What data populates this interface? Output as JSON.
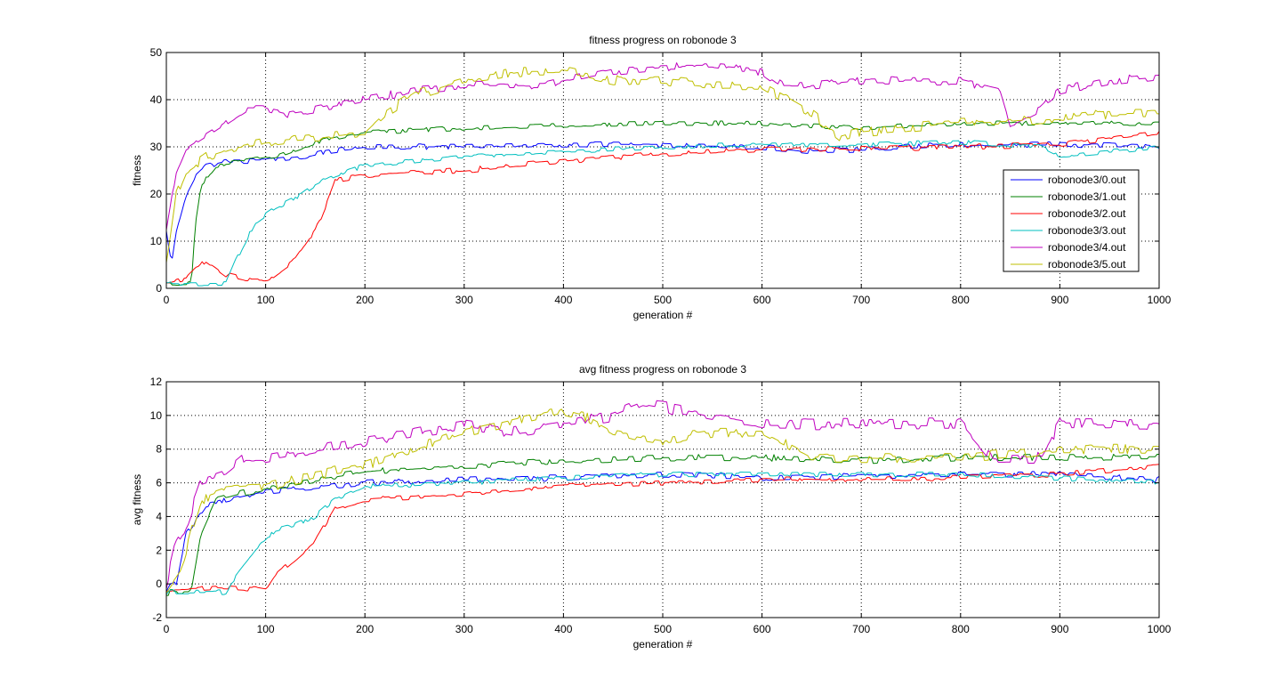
{
  "chart_data": [
    {
      "type": "line",
      "title": "fitness progress on robonode 3",
      "xlabel": "generation #",
      "ylabel": "fitness",
      "xlim": [
        0,
        1000
      ],
      "ylim": [
        0,
        50
      ],
      "xticks": [
        0,
        100,
        200,
        300,
        400,
        500,
        600,
        700,
        800,
        900,
        1000
      ],
      "yticks": [
        0,
        10,
        20,
        30,
        40,
        50
      ],
      "grid": true,
      "legend_position": "right",
      "series": [
        {
          "name": "robonode3/0.out",
          "color": "#0000ff",
          "noise": 0.6,
          "points": [
            [
              0,
              12
            ],
            [
              5,
              5
            ],
            [
              10,
              12
            ],
            [
              20,
              20
            ],
            [
              30,
              24
            ],
            [
              40,
              26
            ],
            [
              60,
              27
            ],
            [
              100,
              27
            ],
            [
              140,
              28
            ],
            [
              160,
              29
            ],
            [
              200,
              30
            ],
            [
              300,
              30
            ],
            [
              400,
              30.5
            ],
            [
              500,
              30.5
            ],
            [
              600,
              30
            ],
            [
              650,
              29
            ],
            [
              700,
              29.5
            ],
            [
              800,
              30.5
            ],
            [
              900,
              30.5
            ],
            [
              1000,
              30
            ]
          ]
        },
        {
          "name": "robonode3/1.out",
          "color": "#008000",
          "noise": 0.5,
          "points": [
            [
              0,
              1
            ],
            [
              25,
              1
            ],
            [
              30,
              15
            ],
            [
              35,
              22
            ],
            [
              50,
              26
            ],
            [
              80,
              27
            ],
            [
              110,
              28
            ],
            [
              150,
              31
            ],
            [
              200,
              33
            ],
            [
              300,
              34
            ],
            [
              400,
              34.5
            ],
            [
              500,
              35
            ],
            [
              600,
              35
            ],
            [
              700,
              34
            ],
            [
              800,
              35
            ],
            [
              900,
              35
            ],
            [
              950,
              35
            ],
            [
              1000,
              35
            ]
          ]
        },
        {
          "name": "robonode3/2.out",
          "color": "#ff0000",
          "noise": 0.6,
          "points": [
            [
              0,
              1
            ],
            [
              20,
              2
            ],
            [
              40,
              6
            ],
            [
              60,
              3
            ],
            [
              80,
              2
            ],
            [
              100,
              2
            ],
            [
              110,
              3
            ],
            [
              130,
              6
            ],
            [
              150,
              12
            ],
            [
              165,
              20
            ],
            [
              170,
              23
            ],
            [
              200,
              24
            ],
            [
              300,
              25
            ],
            [
              400,
              27
            ],
            [
              500,
              28.5
            ],
            [
              600,
              29.5
            ],
            [
              700,
              29.5
            ],
            [
              800,
              30
            ],
            [
              900,
              30.5
            ],
            [
              1000,
              33
            ]
          ]
        },
        {
          "name": "robonode3/3.out",
          "color": "#00bfbf",
          "noise": 0.5,
          "points": [
            [
              0,
              1
            ],
            [
              40,
              1
            ],
            [
              60,
              1
            ],
            [
              70,
              6
            ],
            [
              90,
              14
            ],
            [
              110,
              17
            ],
            [
              130,
              19
            ],
            [
              150,
              22
            ],
            [
              170,
              24
            ],
            [
              200,
              26
            ],
            [
              300,
              28
            ],
            [
              400,
              29
            ],
            [
              500,
              30
            ],
            [
              600,
              30.5
            ],
            [
              700,
              30.5
            ],
            [
              800,
              31
            ],
            [
              880,
              30
            ],
            [
              900,
              28
            ],
            [
              950,
              29
            ],
            [
              1000,
              30
            ]
          ]
        },
        {
          "name": "robonode3/4.out",
          "color": "#bf00bf",
          "noise": 0.9,
          "points": [
            [
              0,
              12
            ],
            [
              10,
              25
            ],
            [
              20,
              30
            ],
            [
              50,
              34
            ],
            [
              80,
              38
            ],
            [
              100,
              38
            ],
            [
              120,
              37
            ],
            [
              150,
              38
            ],
            [
              200,
              40
            ],
            [
              250,
              42
            ],
            [
              300,
              43
            ],
            [
              380,
              43
            ],
            [
              400,
              44
            ],
            [
              450,
              46
            ],
            [
              500,
              47
            ],
            [
              550,
              47
            ],
            [
              600,
              46
            ],
            [
              620,
              43
            ],
            [
              650,
              43
            ],
            [
              700,
              44
            ],
            [
              800,
              44
            ],
            [
              840,
              42
            ],
            [
              850,
              35
            ],
            [
              880,
              38
            ],
            [
              900,
              42
            ],
            [
              950,
              44
            ],
            [
              1000,
              45
            ]
          ]
        },
        {
          "name": "robonode3/5.out",
          "color": "#bfbf00",
          "noise": 1.1,
          "points": [
            [
              0,
              5
            ],
            [
              10,
              20
            ],
            [
              20,
              25
            ],
            [
              40,
              28
            ],
            [
              70,
              30
            ],
            [
              100,
              31
            ],
            [
              150,
              32
            ],
            [
              200,
              33
            ],
            [
              220,
              37
            ],
            [
              250,
              41
            ],
            [
              300,
              44
            ],
            [
              360,
              46
            ],
            [
              400,
              46
            ],
            [
              450,
              44
            ],
            [
              500,
              44
            ],
            [
              550,
              43
            ],
            [
              600,
              43
            ],
            [
              650,
              37
            ],
            [
              680,
              32
            ],
            [
              700,
              33
            ],
            [
              800,
              35
            ],
            [
              900,
              36
            ],
            [
              950,
              37
            ],
            [
              1000,
              37
            ]
          ]
        }
      ]
    },
    {
      "type": "line",
      "title": "avg fitness progress on robonode 3",
      "xlabel": "generation #",
      "ylabel": "avg fitness",
      "xlim": [
        0,
        1000
      ],
      "ylim": [
        -2,
        12
      ],
      "xticks": [
        0,
        100,
        200,
        300,
        400,
        500,
        600,
        700,
        800,
        900,
        1000
      ],
      "yticks": [
        -2,
        0,
        2,
        4,
        6,
        8,
        10,
        12
      ],
      "grid": true,
      "series": [
        {
          "name": "robonode3/0.out",
          "color": "#0000ff",
          "noise": 0.18,
          "points": [
            [
              0,
              -0.3
            ],
            [
              10,
              0
            ],
            [
              20,
              3
            ],
            [
              40,
              4.7
            ],
            [
              60,
              5
            ],
            [
              100,
              5.5
            ],
            [
              200,
              6
            ],
            [
              300,
              6.2
            ],
            [
              400,
              6.3
            ],
            [
              500,
              6.5
            ],
            [
              600,
              6.3
            ],
            [
              700,
              6.4
            ],
            [
              800,
              6.5
            ],
            [
              900,
              6.5
            ],
            [
              1000,
              6.2
            ]
          ]
        },
        {
          "name": "robonode3/1.out",
          "color": "#008000",
          "noise": 0.2,
          "points": [
            [
              0,
              -0.5
            ],
            [
              25,
              -0.5
            ],
            [
              35,
              3
            ],
            [
              50,
              5
            ],
            [
              100,
              5.7
            ],
            [
              200,
              6.7
            ],
            [
              300,
              7
            ],
            [
              400,
              7.3
            ],
            [
              500,
              7.5
            ],
            [
              600,
              7.5
            ],
            [
              700,
              7.3
            ],
            [
              800,
              7.5
            ],
            [
              900,
              7.5
            ],
            [
              1000,
              7.5
            ]
          ]
        },
        {
          "name": "robonode3/2.out",
          "color": "#ff0000",
          "noise": 0.15,
          "points": [
            [
              0,
              -0.3
            ],
            [
              50,
              -0.2
            ],
            [
              90,
              -0.3
            ],
            [
              100,
              -0.4
            ],
            [
              110,
              0.5
            ],
            [
              130,
              1.5
            ],
            [
              150,
              2.5
            ],
            [
              170,
              4.5
            ],
            [
              200,
              5
            ],
            [
              300,
              5.3
            ],
            [
              400,
              5.8
            ],
            [
              500,
              6
            ],
            [
              600,
              6.2
            ],
            [
              700,
              6.2
            ],
            [
              800,
              6.3
            ],
            [
              900,
              6.5
            ],
            [
              1000,
              7
            ]
          ]
        },
        {
          "name": "robonode3/3.out",
          "color": "#00bfbf",
          "noise": 0.15,
          "points": [
            [
              0,
              -0.5
            ],
            [
              60,
              -0.5
            ],
            [
              70,
              0.5
            ],
            [
              90,
              2
            ],
            [
              110,
              3.2
            ],
            [
              130,
              3.5
            ],
            [
              150,
              4
            ],
            [
              170,
              5
            ],
            [
              200,
              5.8
            ],
            [
              300,
              6
            ],
            [
              400,
              6.3
            ],
            [
              500,
              6.5
            ],
            [
              600,
              6.5
            ],
            [
              700,
              6.5
            ],
            [
              800,
              6.5
            ],
            [
              900,
              6.3
            ],
            [
              1000,
              6
            ]
          ]
        },
        {
          "name": "robonode3/4.out",
          "color": "#bf00bf",
          "noise": 0.35,
          "points": [
            [
              0,
              0
            ],
            [
              10,
              2.5
            ],
            [
              20,
              3.5
            ],
            [
              35,
              6
            ],
            [
              60,
              6.5
            ],
            [
              80,
              7.5
            ],
            [
              100,
              7.5
            ],
            [
              150,
              8
            ],
            [
              200,
              8.5
            ],
            [
              250,
              9
            ],
            [
              300,
              9.5
            ],
            [
              350,
              9
            ],
            [
              400,
              9.5
            ],
            [
              450,
              10
            ],
            [
              480,
              10.7
            ],
            [
              500,
              10.5
            ],
            [
              550,
              10
            ],
            [
              600,
              9.5
            ],
            [
              700,
              9.5
            ],
            [
              800,
              9.5
            ],
            [
              830,
              7.5
            ],
            [
              880,
              7.5
            ],
            [
              900,
              9.5
            ],
            [
              1000,
              9.5
            ]
          ]
        },
        {
          "name": "robonode3/5.out",
          "color": "#bfbf00",
          "noise": 0.3,
          "points": [
            [
              0,
              -0.3
            ],
            [
              15,
              1
            ],
            [
              25,
              3
            ],
            [
              35,
              5
            ],
            [
              60,
              5.5
            ],
            [
              100,
              5.7
            ],
            [
              150,
              6.5
            ],
            [
              200,
              7
            ],
            [
              250,
              8
            ],
            [
              300,
              9
            ],
            [
              400,
              10.3
            ],
            [
              420,
              10
            ],
            [
              450,
              9
            ],
            [
              500,
              8.5
            ],
            [
              550,
              9
            ],
            [
              600,
              9
            ],
            [
              650,
              7.5
            ],
            [
              700,
              7.5
            ],
            [
              800,
              7.5
            ],
            [
              900,
              8
            ],
            [
              1000,
              8
            ]
          ]
        }
      ]
    }
  ]
}
